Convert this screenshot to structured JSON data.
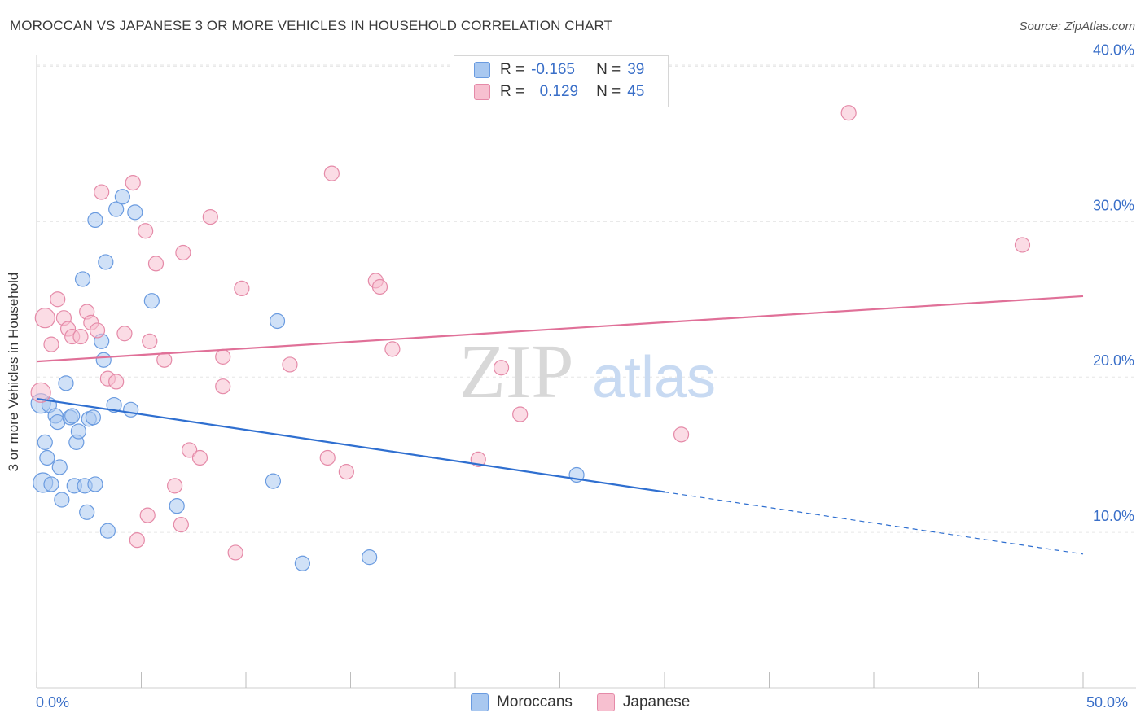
{
  "title": "MOROCCAN VS JAPANESE 3 OR MORE VEHICLES IN HOUSEHOLD CORRELATION CHART",
  "source": "Source: ZipAtlas.com",
  "watermark": {
    "zip": "ZIP",
    "atlas": "atlas"
  },
  "legend": {
    "rows": [
      {
        "r_label": "R =",
        "r_value": "-0.165",
        "n_label": "N =",
        "n_value": "39",
        "color": "#a9c8f0",
        "border": "#6a9be0"
      },
      {
        "r_label": "R =",
        "r_value": "0.129",
        "n_label": "N =",
        "n_value": "45",
        "color": "#f7c0d0",
        "border": "#e58aa8"
      }
    ]
  },
  "bottom_legend": {
    "moroccans": "Moroccans",
    "japanese": "Japanese"
  },
  "chart_data": {
    "type": "scatter",
    "title": "MOROCCAN VS JAPANESE 3 OR MORE VEHICLES IN HOUSEHOLD CORRELATION CHART",
    "xlabel": "",
    "ylabel": "3 or more Vehicles in Household",
    "xlim": [
      0,
      50
    ],
    "ylim": [
      0,
      42
    ],
    "x_tick_labels": [
      "0.0%",
      "50.0%"
    ],
    "y_tick_labels": [
      "10.0%",
      "20.0%",
      "30.0%",
      "40.0%"
    ],
    "y_ticks": [
      10,
      20,
      30,
      40
    ],
    "grid": true,
    "series": [
      {
        "name": "Moroccans",
        "color": "#6a9be0",
        "fill": "#a9c8f0",
        "trend": {
          "x": [
            0,
            30
          ],
          "y": [
            18.6,
            12.6
          ],
          "dashed_to": {
            "x": 50,
            "y": 8.6
          },
          "color": "#2f6fd0"
        },
        "points": [
          [
            0.2,
            18.3
          ],
          [
            0.3,
            13.2
          ],
          [
            0.4,
            15.8
          ],
          [
            0.5,
            14.8
          ],
          [
            0.6,
            18.2
          ],
          [
            0.7,
            13.1
          ],
          [
            0.9,
            17.5
          ],
          [
            1.0,
            17.1
          ],
          [
            1.1,
            14.2
          ],
          [
            1.2,
            12.1
          ],
          [
            1.4,
            19.6
          ],
          [
            1.6,
            17.4
          ],
          [
            1.7,
            17.5
          ],
          [
            1.8,
            13.0
          ],
          [
            1.9,
            15.8
          ],
          [
            2.0,
            16.5
          ],
          [
            2.2,
            26.3
          ],
          [
            2.3,
            13.0
          ],
          [
            2.4,
            11.3
          ],
          [
            2.5,
            17.3
          ],
          [
            2.7,
            17.4
          ],
          [
            2.8,
            13.1
          ],
          [
            3.1,
            22.3
          ],
          [
            3.2,
            21.1
          ],
          [
            2.8,
            30.1
          ],
          [
            3.3,
            27.4
          ],
          [
            3.4,
            10.1
          ],
          [
            3.7,
            18.2
          ],
          [
            3.8,
            30.8
          ],
          [
            4.1,
            31.6
          ],
          [
            4.5,
            17.9
          ],
          [
            4.7,
            30.6
          ],
          [
            5.5,
            24.9
          ],
          [
            6.7,
            11.7
          ],
          [
            11.3,
            13.3
          ],
          [
            11.5,
            23.6
          ],
          [
            12.7,
            8.0
          ],
          [
            15.9,
            8.4
          ],
          [
            25.8,
            13.7
          ]
        ]
      },
      {
        "name": "Japanese",
        "color": "#e58aa8",
        "fill": "#f7c0d0",
        "trend": {
          "x": [
            0,
            50
          ],
          "y": [
            21.0,
            25.2
          ],
          "color": "#e07098"
        },
        "points": [
          [
            0.2,
            19.0
          ],
          [
            0.4,
            23.8
          ],
          [
            0.7,
            22.1
          ],
          [
            1.0,
            25.0
          ],
          [
            1.3,
            23.8
          ],
          [
            1.5,
            23.1
          ],
          [
            1.7,
            22.6
          ],
          [
            2.1,
            22.6
          ],
          [
            2.4,
            24.2
          ],
          [
            2.6,
            23.5
          ],
          [
            2.9,
            23.0
          ],
          [
            3.1,
            31.9
          ],
          [
            3.4,
            19.9
          ],
          [
            3.8,
            19.7
          ],
          [
            4.2,
            22.8
          ],
          [
            4.6,
            32.5
          ],
          [
            4.8,
            9.5
          ],
          [
            5.2,
            29.4
          ],
          [
            5.4,
            22.3
          ],
          [
            5.7,
            27.3
          ],
          [
            6.1,
            21.1
          ],
          [
            6.6,
            13.0
          ],
          [
            5.3,
            11.1
          ],
          [
            6.9,
            10.5
          ],
          [
            7.0,
            28.0
          ],
          [
            7.3,
            15.3
          ],
          [
            7.8,
            14.8
          ],
          [
            8.3,
            30.3
          ],
          [
            8.9,
            21.3
          ],
          [
            8.9,
            19.4
          ],
          [
            9.5,
            8.7
          ],
          [
            9.8,
            25.7
          ],
          [
            12.1,
            20.8
          ],
          [
            13.9,
            14.8
          ],
          [
            14.1,
            33.1
          ],
          [
            14.8,
            13.9
          ],
          [
            16.2,
            26.2
          ],
          [
            16.4,
            25.8
          ],
          [
            17.0,
            21.8
          ],
          [
            21.1,
            14.7
          ],
          [
            22.2,
            20.6
          ],
          [
            23.1,
            17.6
          ],
          [
            30.8,
            16.3
          ],
          [
            38.8,
            37.0
          ],
          [
            47.1,
            28.5
          ]
        ]
      }
    ]
  }
}
